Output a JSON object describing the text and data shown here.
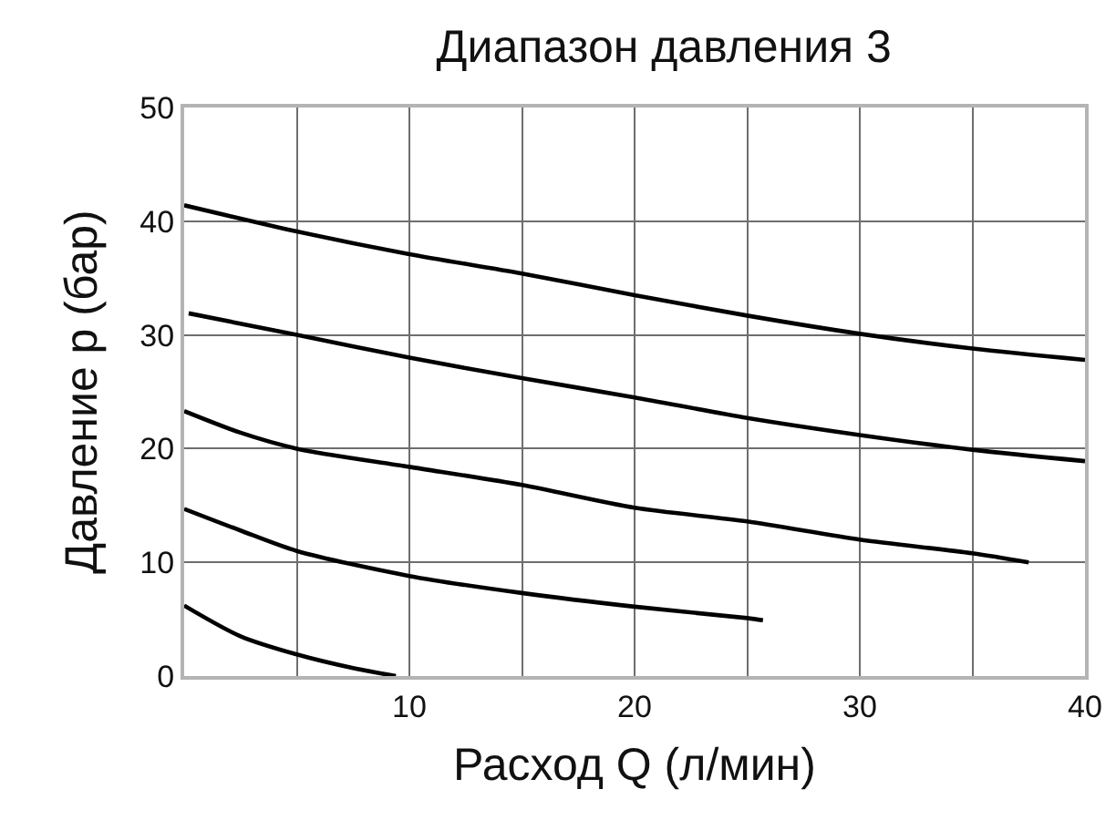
{
  "chart_data": {
    "type": "line",
    "title": "Диапазон давления 3",
    "xlabel": "Расход Q (л/мин)",
    "ylabel": "Давление p (бар)",
    "series": [
      {
        "color": "#000000",
        "x": [
          0,
          5,
          10,
          15,
          20,
          25,
          30,
          35,
          40
        ],
        "values": [
          41.4,
          39.1,
          37.1,
          35.4,
          33.5,
          31.7,
          30.1,
          28.8,
          27.8
        ]
      },
      {
        "color": "#000000",
        "x": [
          0.2,
          5,
          10,
          15,
          20,
          25,
          30,
          35,
          40
        ],
        "values": [
          31.9,
          30.0,
          28.0,
          26.2,
          24.5,
          22.7,
          21.2,
          19.9,
          18.9
        ]
      },
      {
        "color": "#000000",
        "x": [
          0,
          2.5,
          5,
          10,
          15,
          20,
          25,
          30,
          35,
          37.5
        ],
        "values": [
          23.3,
          21.4,
          20.0,
          18.4,
          16.8,
          14.8,
          13.6,
          12.0,
          10.8,
          10.0
        ]
      },
      {
        "color": "#000000",
        "x": [
          0,
          2.5,
          5,
          10,
          15,
          20,
          25,
          25.7
        ],
        "values": [
          14.7,
          12.8,
          11.0,
          8.8,
          7.3,
          6.1,
          5.1,
          4.9
        ]
      },
      {
        "color": "#000000",
        "x": [
          0,
          2.5,
          5,
          7.5,
          9.4
        ],
        "values": [
          6.2,
          3.5,
          1.9,
          0.7,
          0.0
        ]
      }
    ],
    "xlim": [
      0,
      40
    ],
    "xticks": [
      {
        "value": 5,
        "label": null
      },
      10,
      {
        "value": 15,
        "label": null
      },
      20,
      {
        "value": 25,
        "label": null
      },
      30,
      {
        "value": 35,
        "label": null
      },
      40
    ],
    "ylim": [
      0,
      50
    ],
    "yticks": [
      0,
      10,
      20,
      30,
      40,
      50
    ],
    "grid": true,
    "marker": "none",
    "line_style": "solid"
  }
}
